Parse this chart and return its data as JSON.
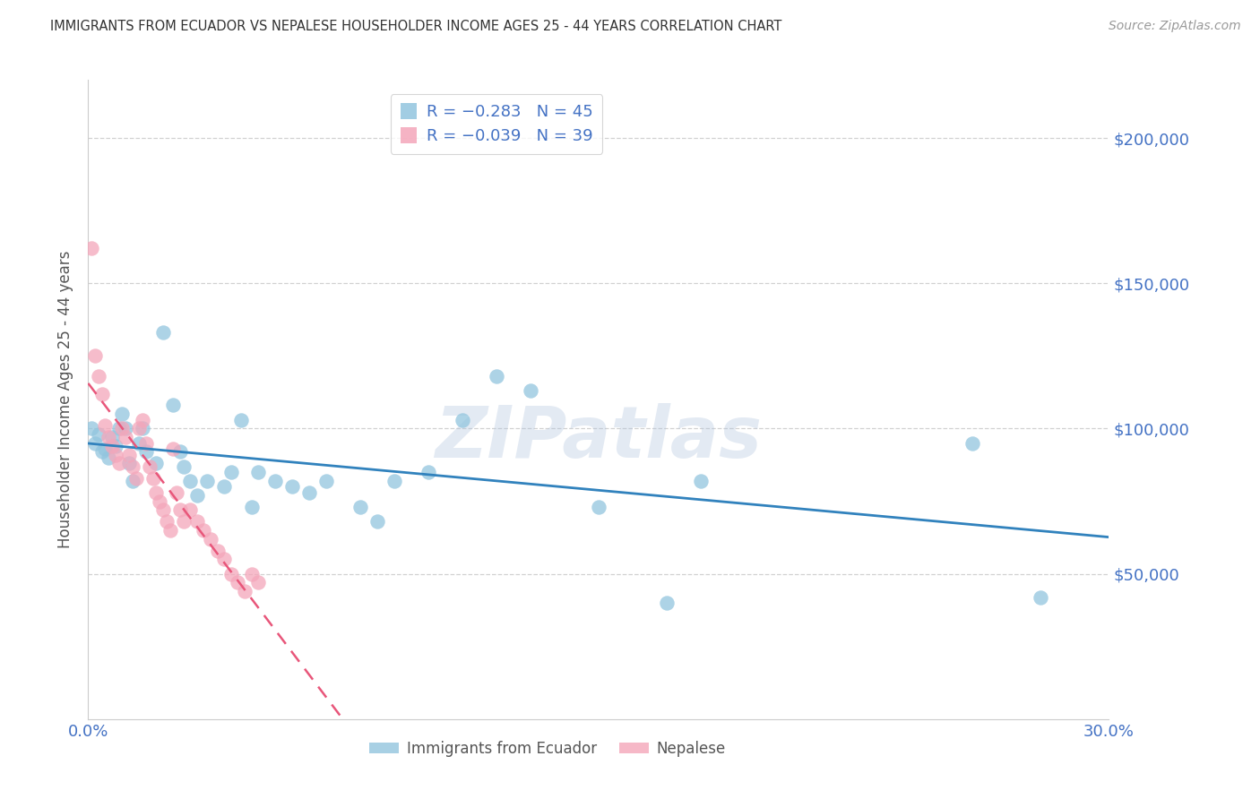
{
  "title": "IMMIGRANTS FROM ECUADOR VS NEPALESE HOUSEHOLDER INCOME AGES 25 - 44 YEARS CORRELATION CHART",
  "source": "Source: ZipAtlas.com",
  "ylabel": "Householder Income Ages 25 - 44 years",
  "ylim": [
    0,
    220000
  ],
  "xlim": [
    0.0,
    0.3
  ],
  "yticks": [
    50000,
    100000,
    150000,
    200000
  ],
  "ytick_labels": [
    "$50,000",
    "$100,000",
    "$150,000",
    "$200,000"
  ],
  "xticks": [
    0.0,
    0.05,
    0.1,
    0.15,
    0.2,
    0.25,
    0.3
  ],
  "xtick_labels": [
    "0.0%",
    "",
    "",
    "",
    "",
    "",
    "30.0%"
  ],
  "ecuador_color": "#92c5de",
  "nepalese_color": "#f4a6ba",
  "ecuador_line_color": "#3182bd",
  "nepalese_line_color": "#e8567a",
  "background_color": "#ffffff",
  "grid_color": "#cccccc",
  "watermark_text": "ZIPatlas",
  "ecuador_x": [
    0.001,
    0.002,
    0.003,
    0.004,
    0.005,
    0.006,
    0.007,
    0.008,
    0.009,
    0.01,
    0.011,
    0.012,
    0.013,
    0.015,
    0.016,
    0.017,
    0.02,
    0.022,
    0.025,
    0.027,
    0.028,
    0.03,
    0.032,
    0.035,
    0.04,
    0.042,
    0.045,
    0.048,
    0.05,
    0.055,
    0.06,
    0.065,
    0.07,
    0.08,
    0.085,
    0.09,
    0.1,
    0.11,
    0.12,
    0.13,
    0.15,
    0.17,
    0.18,
    0.26,
    0.28
  ],
  "ecuador_y": [
    100000,
    95000,
    98000,
    92000,
    93000,
    90000,
    97000,
    94000,
    100000,
    105000,
    100000,
    88000,
    82000,
    95000,
    100000,
    92000,
    88000,
    133000,
    108000,
    92000,
    87000,
    82000,
    77000,
    82000,
    80000,
    85000,
    103000,
    73000,
    85000,
    82000,
    80000,
    78000,
    82000,
    73000,
    68000,
    82000,
    85000,
    103000,
    118000,
    113000,
    73000,
    40000,
    82000,
    95000,
    42000
  ],
  "nepalese_x": [
    0.001,
    0.002,
    0.003,
    0.004,
    0.005,
    0.006,
    0.007,
    0.008,
    0.009,
    0.01,
    0.011,
    0.012,
    0.013,
    0.014,
    0.015,
    0.016,
    0.017,
    0.018,
    0.019,
    0.02,
    0.021,
    0.022,
    0.023,
    0.024,
    0.025,
    0.026,
    0.027,
    0.028,
    0.03,
    0.032,
    0.034,
    0.036,
    0.038,
    0.04,
    0.042,
    0.044,
    0.046,
    0.048,
    0.05
  ],
  "nepalese_y": [
    162000,
    125000,
    118000,
    112000,
    101000,
    97000,
    94000,
    91000,
    88000,
    100000,
    97000,
    91000,
    87000,
    83000,
    100000,
    103000,
    95000,
    87000,
    83000,
    78000,
    75000,
    72000,
    68000,
    65000,
    93000,
    78000,
    72000,
    68000,
    72000,
    68000,
    65000,
    62000,
    58000,
    55000,
    50000,
    47000,
    44000,
    50000,
    47000
  ]
}
